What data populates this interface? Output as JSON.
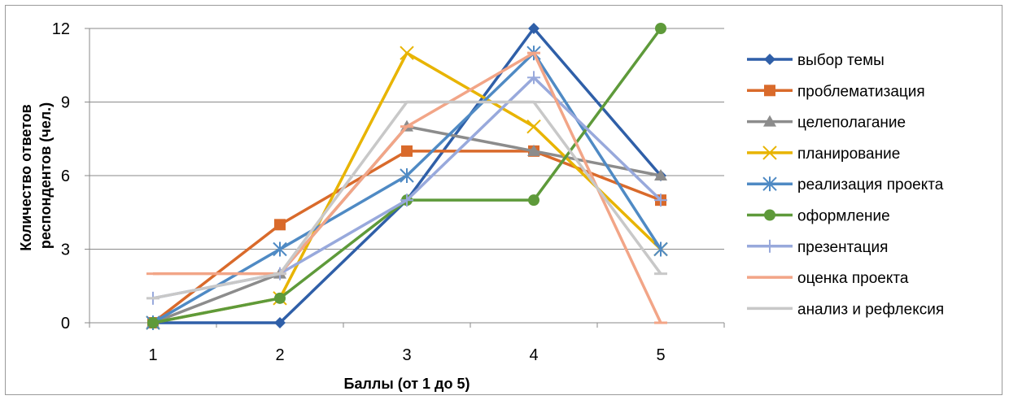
{
  "chart_data": {
    "type": "line",
    "categories": [
      "1",
      "2",
      "3",
      "4",
      "5"
    ],
    "xlabel": "Баллы (от 1 до 5)",
    "ylabel_lines": [
      "Количество ответов",
      "респондентов (чел.)"
    ],
    "ylim": [
      0,
      12
    ],
    "yticks": [
      0,
      3,
      6,
      9,
      12
    ],
    "grid": "horizontal",
    "legend_position": "right",
    "series": [
      {
        "name": "выбор темы",
        "values": [
          0,
          0,
          5,
          12,
          6
        ],
        "color": "#2f5fa8",
        "marker": "diamond"
      },
      {
        "name": "проблематизация",
        "values": [
          0,
          4,
          7,
          7,
          5
        ],
        "color": "#d96a2b",
        "marker": "square"
      },
      {
        "name": "целеполагание",
        "values": [
          0,
          2,
          8,
          7,
          6
        ],
        "color": "#8c8c8c",
        "marker": "triangle"
      },
      {
        "name": "планирование",
        "values": [
          0,
          1,
          11,
          8,
          3
        ],
        "color": "#e8b400",
        "marker": "x"
      },
      {
        "name": "реализация проекта",
        "values": [
          0,
          3,
          6,
          11,
          3
        ],
        "color": "#4f8ac4",
        "marker": "asterisk"
      },
      {
        "name": "оформление",
        "values": [
          0,
          1,
          5,
          5,
          12
        ],
        "color": "#5e9a3a",
        "marker": "circle"
      },
      {
        "name": "презентация",
        "values": [
          1,
          2,
          5,
          10,
          5
        ],
        "color": "#98a9dc",
        "marker": "plus"
      },
      {
        "name": "оценка проекта",
        "values": [
          2,
          2,
          8,
          11,
          0
        ],
        "color": "#f2a587",
        "marker": "dash"
      },
      {
        "name": "анализ и рефлексия",
        "values": [
          1,
          2,
          9,
          9,
          2
        ],
        "color": "#c8c8c8",
        "marker": "dash"
      }
    ]
  }
}
